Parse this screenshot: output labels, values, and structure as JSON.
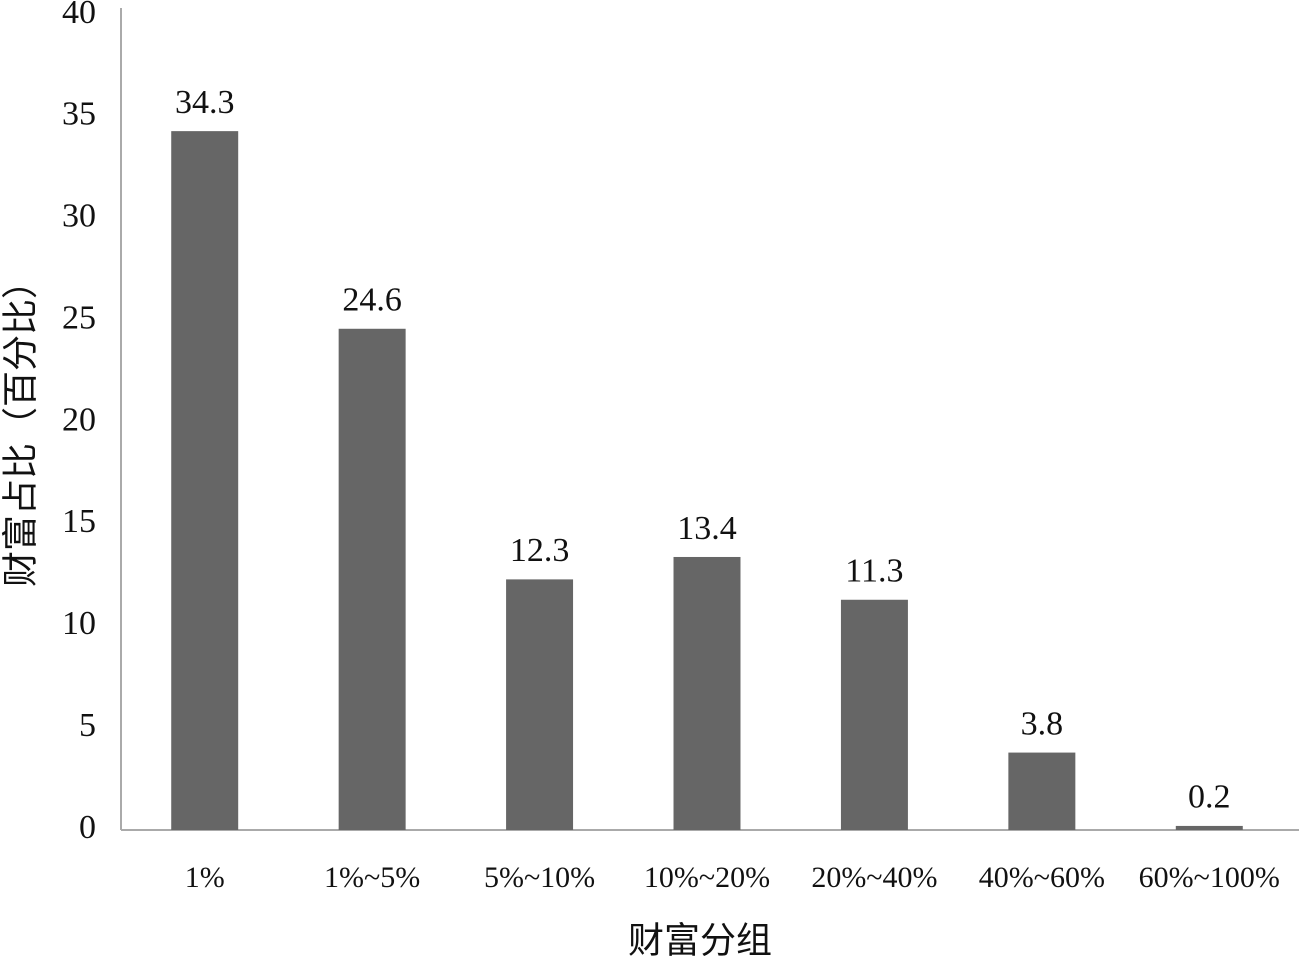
{
  "chart_data": {
    "type": "bar",
    "x_label": "财富分组",
    "y_label": "财富占比（百分比）",
    "categories": [
      "1%",
      "1%~5%",
      "5%~10%",
      "10%~20%",
      "20%~40%",
      "40%~60%",
      "60%~100%"
    ],
    "values": [
      34.3,
      24.6,
      12.3,
      13.4,
      11.3,
      3.8,
      0.2
    ],
    "color": "#666666",
    "ylim": [
      0,
      40
    ],
    "yticks": [
      0,
      5,
      10,
      15,
      20,
      25,
      30,
      35,
      40
    ],
    "grid": false
  }
}
